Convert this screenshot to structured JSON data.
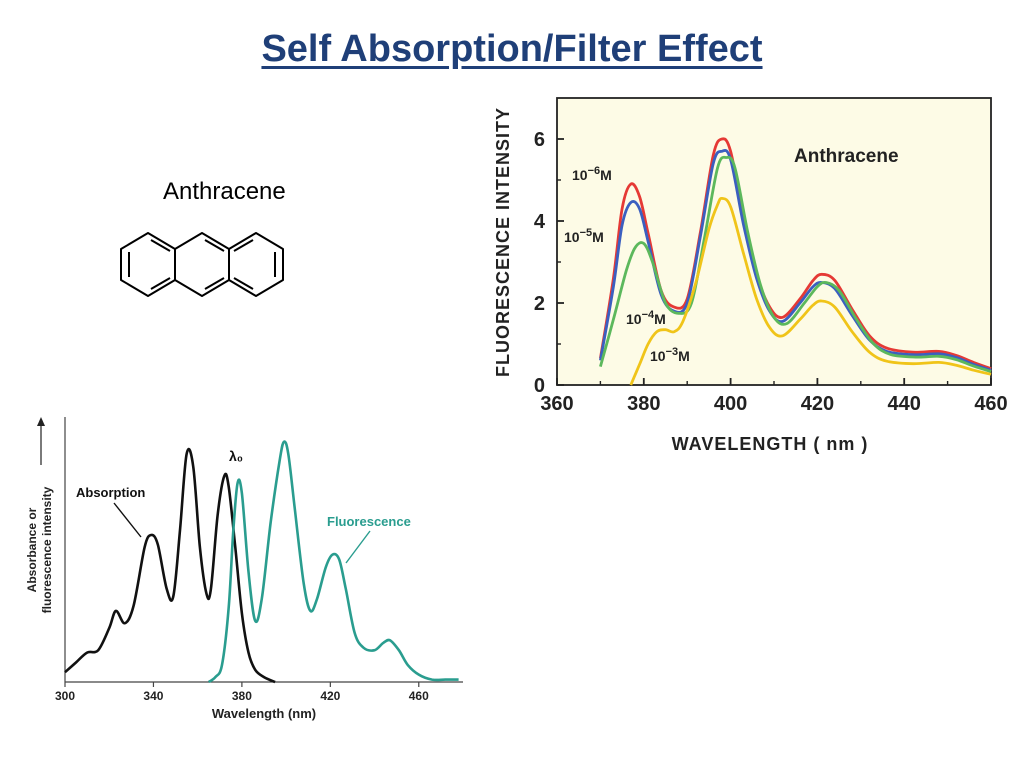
{
  "slide": {
    "title": "Self Absorption/Filter Effect",
    "title_color": "#1f3f78"
  },
  "molecule": {
    "name": "Anthracene"
  },
  "chart_data": [
    {
      "type": "line",
      "xlabel": "Wavelength (nm)",
      "ylabel": "Absorbance or fluorescence intensity",
      "xlim": [
        300,
        480
      ],
      "ylim": [
        0,
        1
      ],
      "x_ticks": [
        300,
        340,
        380,
        420,
        460
      ],
      "background": "#ffffff",
      "annotations": {
        "peak_marker": "λ₀"
      },
      "series": [
        {
          "name": "Absorption",
          "color": "#111111",
          "label_color": "#111111",
          "points": [
            [
              300,
              0.04
            ],
            [
              305,
              0.08
            ],
            [
              310,
              0.12
            ],
            [
              315,
              0.13
            ],
            [
              320,
              0.22
            ],
            [
              323,
              0.29
            ],
            [
              327,
              0.24
            ],
            [
              331,
              0.31
            ],
            [
              336,
              0.55
            ],
            [
              339,
              0.6
            ],
            [
              342,
              0.56
            ],
            [
              346,
              0.38
            ],
            [
              349,
              0.35
            ],
            [
              352,
              0.62
            ],
            [
              355,
              0.93
            ],
            [
              358,
              0.88
            ],
            [
              361,
              0.55
            ],
            [
              364,
              0.36
            ],
            [
              366,
              0.38
            ],
            [
              369,
              0.68
            ],
            [
              372,
              0.84
            ],
            [
              374,
              0.8
            ],
            [
              377,
              0.55
            ],
            [
              380,
              0.28
            ],
            [
              383,
              0.12
            ],
            [
              386,
              0.05
            ],
            [
              390,
              0.02
            ],
            [
              395,
              0.0
            ]
          ]
        },
        {
          "name": "Fluorescence",
          "color": "#2a9d8f",
          "label_color": "#2a9d8f",
          "points": [
            [
              365,
              0.0
            ],
            [
              368,
              0.02
            ],
            [
              371,
              0.07
            ],
            [
              374,
              0.3
            ],
            [
              376,
              0.6
            ],
            [
              378,
              0.81
            ],
            [
              380,
              0.77
            ],
            [
              383,
              0.45
            ],
            [
              386,
              0.25
            ],
            [
              389,
              0.34
            ],
            [
              393,
              0.65
            ],
            [
              397,
              0.9
            ],
            [
              399,
              0.98
            ],
            [
              401,
              0.93
            ],
            [
              404,
              0.7
            ],
            [
              408,
              0.4
            ],
            [
              411,
              0.29
            ],
            [
              414,
              0.34
            ],
            [
              418,
              0.47
            ],
            [
              421,
              0.52
            ],
            [
              424,
              0.5
            ],
            [
              427,
              0.38
            ],
            [
              431,
              0.2
            ],
            [
              435,
              0.14
            ],
            [
              440,
              0.13
            ],
            [
              444,
              0.16
            ],
            [
              447,
              0.17
            ],
            [
              451,
              0.13
            ],
            [
              455,
              0.07
            ],
            [
              460,
              0.03
            ],
            [
              466,
              0.01
            ],
            [
              472,
              0.01
            ],
            [
              478,
              0.01
            ]
          ]
        }
      ]
    },
    {
      "type": "line",
      "title": "Anthracene",
      "xlabel": "WAVELENGTH  ( nm )",
      "ylabel": "FLUORESCENCE INTENSITY",
      "xlim": [
        360,
        460
      ],
      "ylim": [
        0,
        7
      ],
      "x_ticks": [
        360,
        380,
        400,
        420,
        440,
        460
      ],
      "y_ticks": [
        0,
        2,
        4,
        6
      ],
      "background": "#fdfbe6",
      "series": [
        {
          "name": "10⁻⁶M",
          "label_base": "10",
          "label_exp": "−6",
          "label_unit": "M",
          "color": "#e53935",
          "points": [
            [
              370,
              0.65
            ],
            [
              373,
              2.6
            ],
            [
              375,
              4.3
            ],
            [
              377,
              4.9
            ],
            [
              379,
              4.6
            ],
            [
              381,
              3.7
            ],
            [
              384,
              2.3
            ],
            [
              387,
              1.9
            ],
            [
              390,
              2.1
            ],
            [
              393,
              3.7
            ],
            [
              396,
              5.6
            ],
            [
              398,
              6.0
            ],
            [
              400,
              5.7
            ],
            [
              403,
              4.1
            ],
            [
              406,
              2.7
            ],
            [
              409,
              1.9
            ],
            [
              412,
              1.65
            ],
            [
              416,
              2.1
            ],
            [
              419,
              2.55
            ],
            [
              421,
              2.7
            ],
            [
              424,
              2.55
            ],
            [
              428,
              1.85
            ],
            [
              432,
              1.2
            ],
            [
              436,
              0.9
            ],
            [
              442,
              0.8
            ],
            [
              448,
              0.82
            ],
            [
              452,
              0.72
            ],
            [
              456,
              0.55
            ],
            [
              460,
              0.4
            ]
          ]
        },
        {
          "name": "10⁻⁵M",
          "label_base": "10",
          "label_exp": "−5",
          "label_unit": "M",
          "color": "#3b5fc0",
          "points": [
            [
              370,
              0.6
            ],
            [
              373,
              2.4
            ],
            [
              375,
              3.9
            ],
            [
              377,
              4.45
            ],
            [
              379,
              4.3
            ],
            [
              381,
              3.5
            ],
            [
              384,
              2.2
            ],
            [
              387,
              1.8
            ],
            [
              390,
              2.0
            ],
            [
              393,
              3.6
            ],
            [
              396,
              5.4
            ],
            [
              398,
              5.7
            ],
            [
              400,
              5.5
            ],
            [
              403,
              3.9
            ],
            [
              406,
              2.6
            ],
            [
              409,
              1.8
            ],
            [
              412,
              1.55
            ],
            [
              416,
              2.0
            ],
            [
              419,
              2.4
            ],
            [
              421,
              2.5
            ],
            [
              424,
              2.35
            ],
            [
              428,
              1.7
            ],
            [
              432,
              1.1
            ],
            [
              436,
              0.82
            ],
            [
              442,
              0.74
            ],
            [
              448,
              0.76
            ],
            [
              452,
              0.67
            ],
            [
              456,
              0.5
            ],
            [
              460,
              0.36
            ]
          ]
        },
        {
          "name": "10⁻⁴M",
          "label_base": "10",
          "label_exp": "−4",
          "label_unit": "M",
          "color": "#5cb85c",
          "points": [
            [
              370,
              0.45
            ],
            [
              373,
              1.6
            ],
            [
              376,
              2.8
            ],
            [
              378,
              3.35
            ],
            [
              380,
              3.45
            ],
            [
              382,
              3.0
            ],
            [
              385,
              2.0
            ],
            [
              388,
              1.75
            ],
            [
              391,
              2.0
            ],
            [
              394,
              3.6
            ],
            [
              397,
              5.3
            ],
            [
              399,
              5.55
            ],
            [
              401,
              5.3
            ],
            [
              404,
              3.7
            ],
            [
              407,
              2.4
            ],
            [
              410,
              1.65
            ],
            [
              413,
              1.5
            ],
            [
              417,
              2.0
            ],
            [
              420,
              2.4
            ],
            [
              422,
              2.5
            ],
            [
              425,
              2.3
            ],
            [
              429,
              1.6
            ],
            [
              433,
              1.0
            ],
            [
              437,
              0.74
            ],
            [
              443,
              0.68
            ],
            [
              448,
              0.7
            ],
            [
              452,
              0.62
            ],
            [
              456,
              0.46
            ],
            [
              460,
              0.33
            ]
          ]
        },
        {
          "name": "10⁻³M",
          "label_base": "10",
          "label_exp": "−3",
          "label_unit": "M",
          "color": "#f0c419",
          "points": [
            [
              377,
              0.0
            ],
            [
              379,
              0.5
            ],
            [
              381,
              1.0
            ],
            [
              383,
              1.3
            ],
            [
              385,
              1.35
            ],
            [
              387,
              1.3
            ],
            [
              389,
              1.55
            ],
            [
              392,
              2.5
            ],
            [
              395,
              3.8
            ],
            [
              397,
              4.4
            ],
            [
              398,
              4.55
            ],
            [
              400,
              4.35
            ],
            [
              403,
              3.2
            ],
            [
              406,
              2.1
            ],
            [
              409,
              1.4
            ],
            [
              412,
              1.2
            ],
            [
              416,
              1.6
            ],
            [
              419,
              1.95
            ],
            [
              421,
              2.05
            ],
            [
              424,
              1.9
            ],
            [
              428,
              1.3
            ],
            [
              432,
              0.8
            ],
            [
              436,
              0.58
            ],
            [
              442,
              0.52
            ],
            [
              448,
              0.55
            ],
            [
              452,
              0.48
            ],
            [
              456,
              0.36
            ],
            [
              460,
              0.26
            ]
          ]
        }
      ]
    }
  ]
}
